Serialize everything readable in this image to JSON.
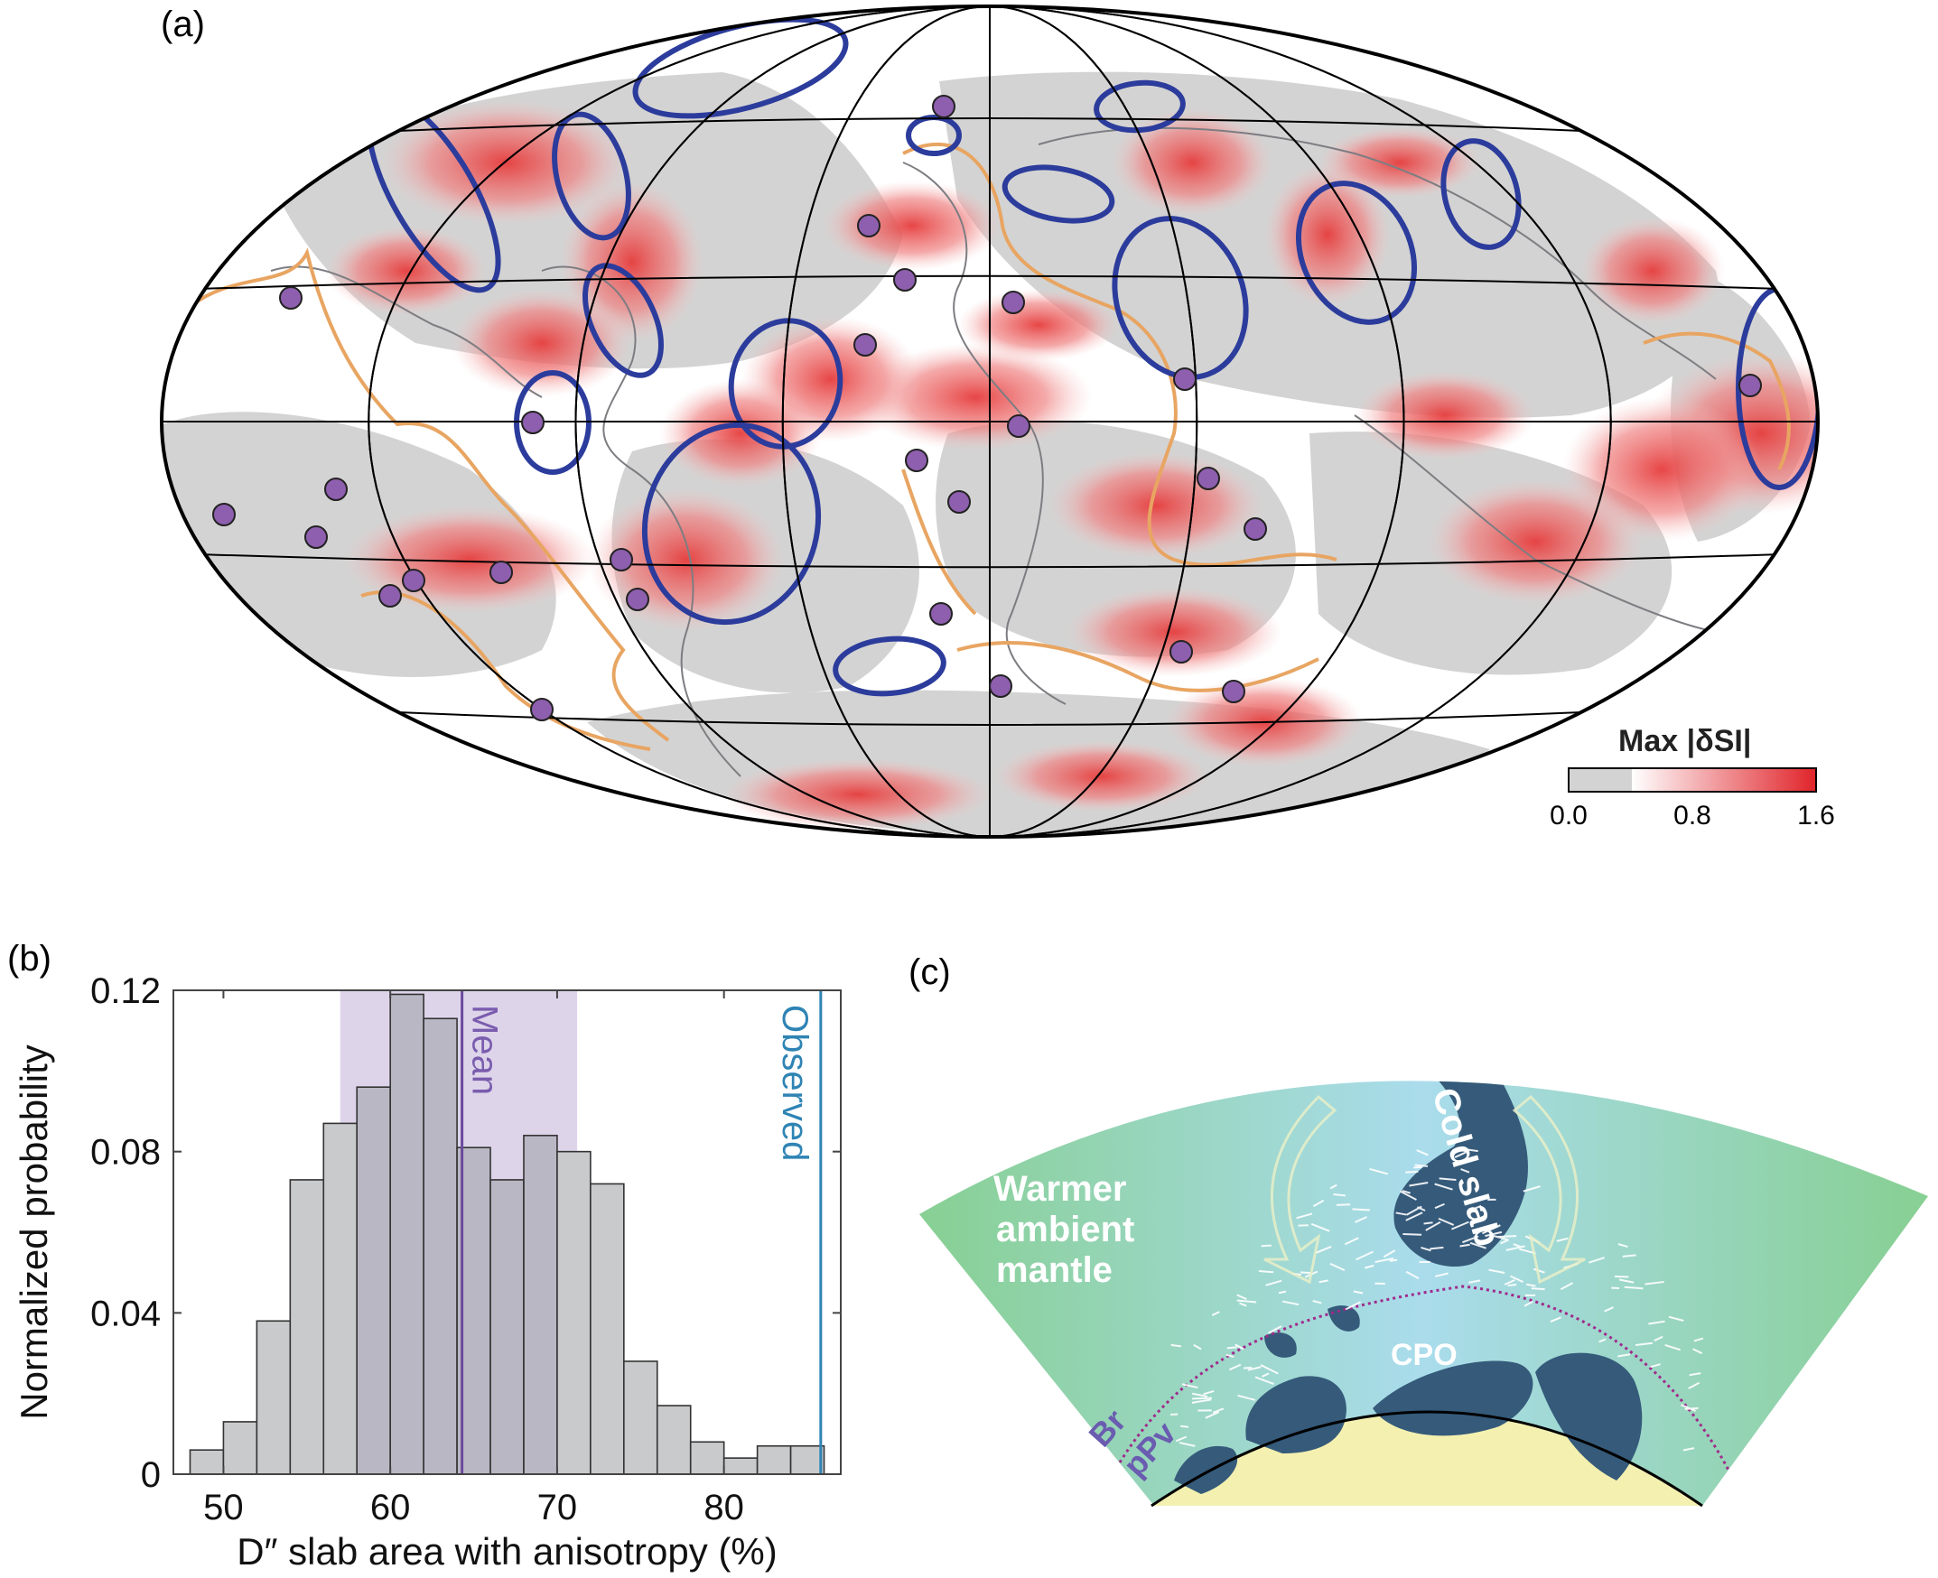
{
  "panels": {
    "a": {
      "label": "(a)",
      "colorbar": {
        "title": "Max  |δSI|",
        "ticks": [
          "0.0",
          "0.8",
          "1.6"
        ],
        "range": [
          0,
          1.6
        ],
        "gray_threshold": 0.4,
        "colors": {
          "low": "#d3d3d3",
          "mid": "#f7c5c5",
          "high": "#e0242a"
        }
      },
      "map": {
        "projection": "hammer",
        "colors": {
          "ocean_fill": "#ffffff",
          "gray": "#d2d2d2",
          "red": "#e63c3c",
          "blue_contour": "#2c3c9c",
          "orange_contour": "#e8a562",
          "dots": "#8e5fae",
          "coastline": "#7d7d82"
        }
      }
    },
    "b": {
      "label": "(b)"
    },
    "c": {
      "label": "(c)",
      "text": {
        "ambient": [
          "Warmer",
          "ambient",
          "mantle"
        ],
        "slab": "Cold slab",
        "cpo": "CPO",
        "br": "Br",
        "ppv": "pPv"
      },
      "colors": {
        "mantle_edge": "#88d093",
        "mantle_center": "#a9dcea",
        "slab": "#355a7a",
        "core": "#f4f0b0",
        "boundary": "#a02a8c"
      }
    }
  },
  "chart_data": {
    "type": "bar",
    "title": "",
    "xlabel": "D″ slab area with anisotropy (%)",
    "ylabel": "Normalized probability",
    "xlim": [
      47,
      87
    ],
    "ylim": [
      0,
      0.12
    ],
    "xticks": [
      50,
      60,
      70,
      80
    ],
    "yticks": [
      0,
      0.04,
      0.08,
      0.12
    ],
    "ytick_labels": [
      "0",
      "0.04",
      "0.08",
      "0.12"
    ],
    "bin_width": 2,
    "bin_starts": [
      48,
      50,
      52,
      54,
      56,
      58,
      60,
      62,
      64,
      66,
      68,
      70,
      72,
      74,
      76,
      78,
      80,
      82,
      84
    ],
    "values": [
      0.006,
      0.013,
      0.038,
      0.073,
      0.087,
      0.096,
      0.119,
      0.113,
      0.081,
      0.073,
      0.084,
      0.08,
      0.072,
      0.028,
      0.017,
      0.008,
      0.004,
      0.007,
      0.007
    ],
    "mean": {
      "value": 64.3,
      "label": "Mean",
      "color": "#6a4a9e"
    },
    "mean_band": {
      "range": [
        57.0,
        71.2
      ],
      "color": "#d7cce6"
    },
    "observed": {
      "value": 85.8,
      "label": "Observed",
      "color": "#2f84b4"
    },
    "bar_color": "#c9cacc",
    "grid": false,
    "legend": "none"
  }
}
